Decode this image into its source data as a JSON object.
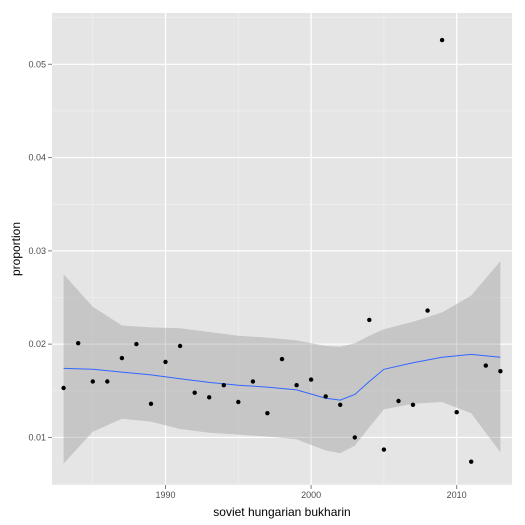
{
  "chart_data": {
    "type": "scatter",
    "xlabel": "soviet hungarian bukharin",
    "ylabel": "proportion",
    "xlim": [
      1982.2,
      2013.8
    ],
    "ylim": [
      0.0049,
      0.0555
    ],
    "x_ticks": [
      1990,
      2000,
      2010
    ],
    "x_tick_labels": [
      "1990",
      "2000",
      "2010"
    ],
    "y_ticks": [
      0.01,
      0.02,
      0.03,
      0.04,
      0.05
    ],
    "y_tick_labels": [
      "0.01",
      "0.02",
      "0.03",
      "0.04",
      "0.05"
    ],
    "grid": true,
    "points": [
      {
        "x": 1983,
        "y": 0.0153
      },
      {
        "x": 1984,
        "y": 0.0201
      },
      {
        "x": 1985,
        "y": 0.016
      },
      {
        "x": 1986,
        "y": 0.016
      },
      {
        "x": 1987,
        "y": 0.0185
      },
      {
        "x": 1988,
        "y": 0.02
      },
      {
        "x": 1989,
        "y": 0.0136
      },
      {
        "x": 1990,
        "y": 0.0181
      },
      {
        "x": 1991,
        "y": 0.0198
      },
      {
        "x": 1992,
        "y": 0.0148
      },
      {
        "x": 1993,
        "y": 0.0143
      },
      {
        "x": 1994,
        "y": 0.0156
      },
      {
        "x": 1995,
        "y": 0.0138
      },
      {
        "x": 1996,
        "y": 0.016
      },
      {
        "x": 1997,
        "y": 0.0126
      },
      {
        "x": 1998,
        "y": 0.0184
      },
      {
        "x": 1999,
        "y": 0.0156
      },
      {
        "x": 2000,
        "y": 0.0162
      },
      {
        "x": 2001,
        "y": 0.0144
      },
      {
        "x": 2002,
        "y": 0.0135
      },
      {
        "x": 2003,
        "y": 0.01
      },
      {
        "x": 2004,
        "y": 0.0226
      },
      {
        "x": 2005,
        "y": 0.0087
      },
      {
        "x": 2006,
        "y": 0.0139
      },
      {
        "x": 2007,
        "y": 0.0135
      },
      {
        "x": 2008,
        "y": 0.0236
      },
      {
        "x": 2009,
        "y": 0.0526
      },
      {
        "x": 2010,
        "y": 0.0127
      },
      {
        "x": 2011,
        "y": 0.0074
      },
      {
        "x": 2012,
        "y": 0.0177
      },
      {
        "x": 2013,
        "y": 0.0171
      }
    ],
    "smooth": {
      "x": [
        1983,
        1985,
        1987,
        1989,
        1991,
        1993,
        1995,
        1997,
        1999,
        2001,
        2002,
        2003,
        2004,
        2005,
        2007,
        2009,
        2011,
        2013
      ],
      "y": [
        0.0174,
        0.0173,
        0.017,
        0.0167,
        0.0163,
        0.0159,
        0.0156,
        0.0154,
        0.0151,
        0.0142,
        0.014,
        0.0146,
        0.016,
        0.0173,
        0.018,
        0.0186,
        0.0189,
        0.0186
      ],
      "upper": [
        0.0275,
        0.024,
        0.022,
        0.0218,
        0.0217,
        0.0213,
        0.0209,
        0.0207,
        0.0204,
        0.0198,
        0.0197,
        0.0201,
        0.0209,
        0.0216,
        0.0224,
        0.0234,
        0.0252,
        0.0289
      ],
      "lower": [
        0.0072,
        0.0106,
        0.012,
        0.0117,
        0.0109,
        0.0105,
        0.0103,
        0.0101,
        0.0098,
        0.0086,
        0.0083,
        0.0091,
        0.0111,
        0.013,
        0.0136,
        0.0138,
        0.0126,
        0.0084
      ]
    },
    "colors": {
      "panel": "#e5e5e5",
      "grid_major": "#ffffff",
      "grid_minor": "#f2f2f2",
      "points": "#000000",
      "line": "#3366ff",
      "ribbon": "#999999"
    }
  }
}
